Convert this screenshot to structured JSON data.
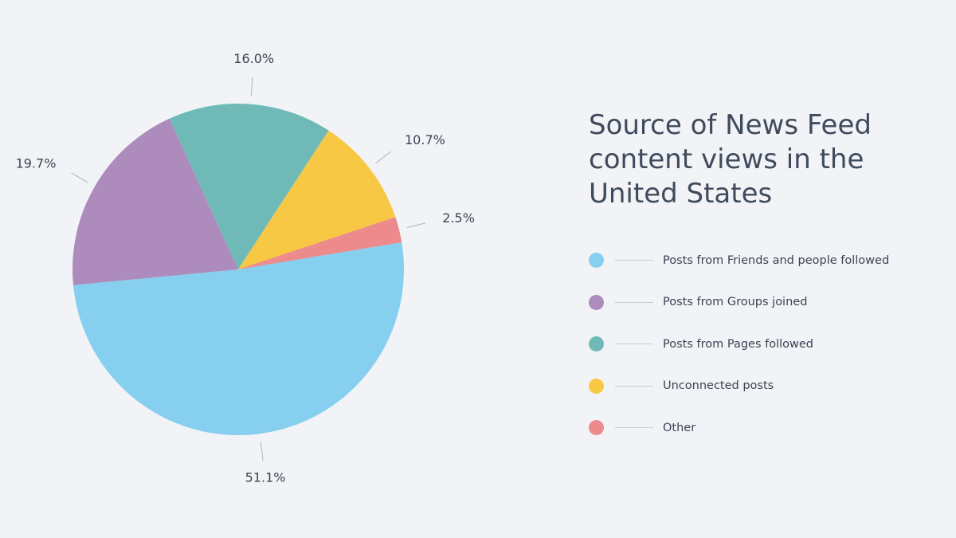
{
  "chart_data": {
    "type": "pie",
    "title": "Source of News Feed content views in the United States",
    "slices": [
      {
        "label": "Posts from Friends and people followed",
        "value": 51.1,
        "value_label": "51.1%",
        "color": "#86cfee"
      },
      {
        "label": "Posts from Groups joined",
        "value": 19.7,
        "value_label": "19.7%",
        "color": "#ae8bbd"
      },
      {
        "label": "Posts from Pages followed",
        "value": 16.0,
        "value_label": "16.0%",
        "color": "#6fbab7"
      },
      {
        "label": "Unconnected posts",
        "value": 10.7,
        "value_label": "10.7%",
        "color": "#f7c844"
      },
      {
        "label": "Other",
        "value": 2.5,
        "value_label": "2.5%",
        "color": "#ec8a8c"
      }
    ],
    "legend": {
      "placement": "right"
    }
  },
  "colors": {
    "background": "#f2f3f7",
    "text": "#3f4b5c"
  }
}
